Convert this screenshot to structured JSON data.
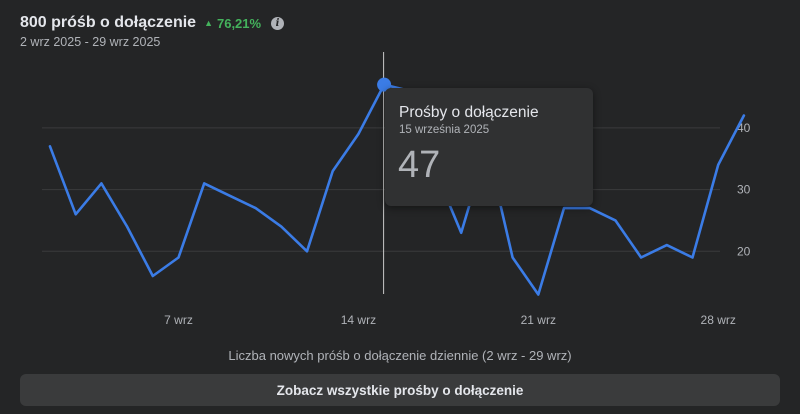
{
  "header": {
    "title": "800 próśb o dołączenie",
    "delta": "76,21%",
    "delta_color": "#44b35c",
    "info_icon": "info-icon",
    "date_range": "2 wrz 2025 - 29 wrz 2025"
  },
  "tooltip": {
    "title": "Prośby o dołączenie",
    "date": "15 września 2025",
    "value": "47"
  },
  "caption": "Liczba nowych próśb o dołączenie dziennie (2 wrz - 29 wrz)",
  "cta_label": "Zobacz wszystkie prośby o dołączenie",
  "colors": {
    "line": "#3b7ce6",
    "grid": "#3a3b3c",
    "cursor": "#c8c8c8"
  },
  "chart_data": {
    "type": "line",
    "x": [
      "2 wrz",
      "3 wrz",
      "4 wrz",
      "5 wrz",
      "6 wrz",
      "7 wrz",
      "8 wrz",
      "9 wrz",
      "10 wrz",
      "11 wrz",
      "12 wrz",
      "13 wrz",
      "14 wrz",
      "15 wrz",
      "16 wrz",
      "17 wrz",
      "18 wrz",
      "19 wrz",
      "20 wrz",
      "21 wrz",
      "22 wrz",
      "23 wrz",
      "24 wrz",
      "25 wrz",
      "26 wrz",
      "27 wrz",
      "28 wrz",
      "29 wrz"
    ],
    "x_ticks": [
      "7 wrz",
      "14 wrz",
      "21 wrz",
      "28 wrz"
    ],
    "x_tick_indices": [
      5,
      12,
      19,
      26
    ],
    "series": [
      {
        "values": [
          37,
          26,
          31,
          24,
          16,
          19,
          31,
          29,
          27,
          24,
          20,
          33,
          39,
          47,
          46,
          33,
          23,
          37,
          19,
          13,
          27,
          27,
          25,
          19,
          21,
          19,
          34,
          42
        ]
      }
    ],
    "yticks": [
      20,
      30,
      40
    ],
    "ylim": [
      10,
      51
    ],
    "highlight_index": 13,
    "grid": true
  }
}
